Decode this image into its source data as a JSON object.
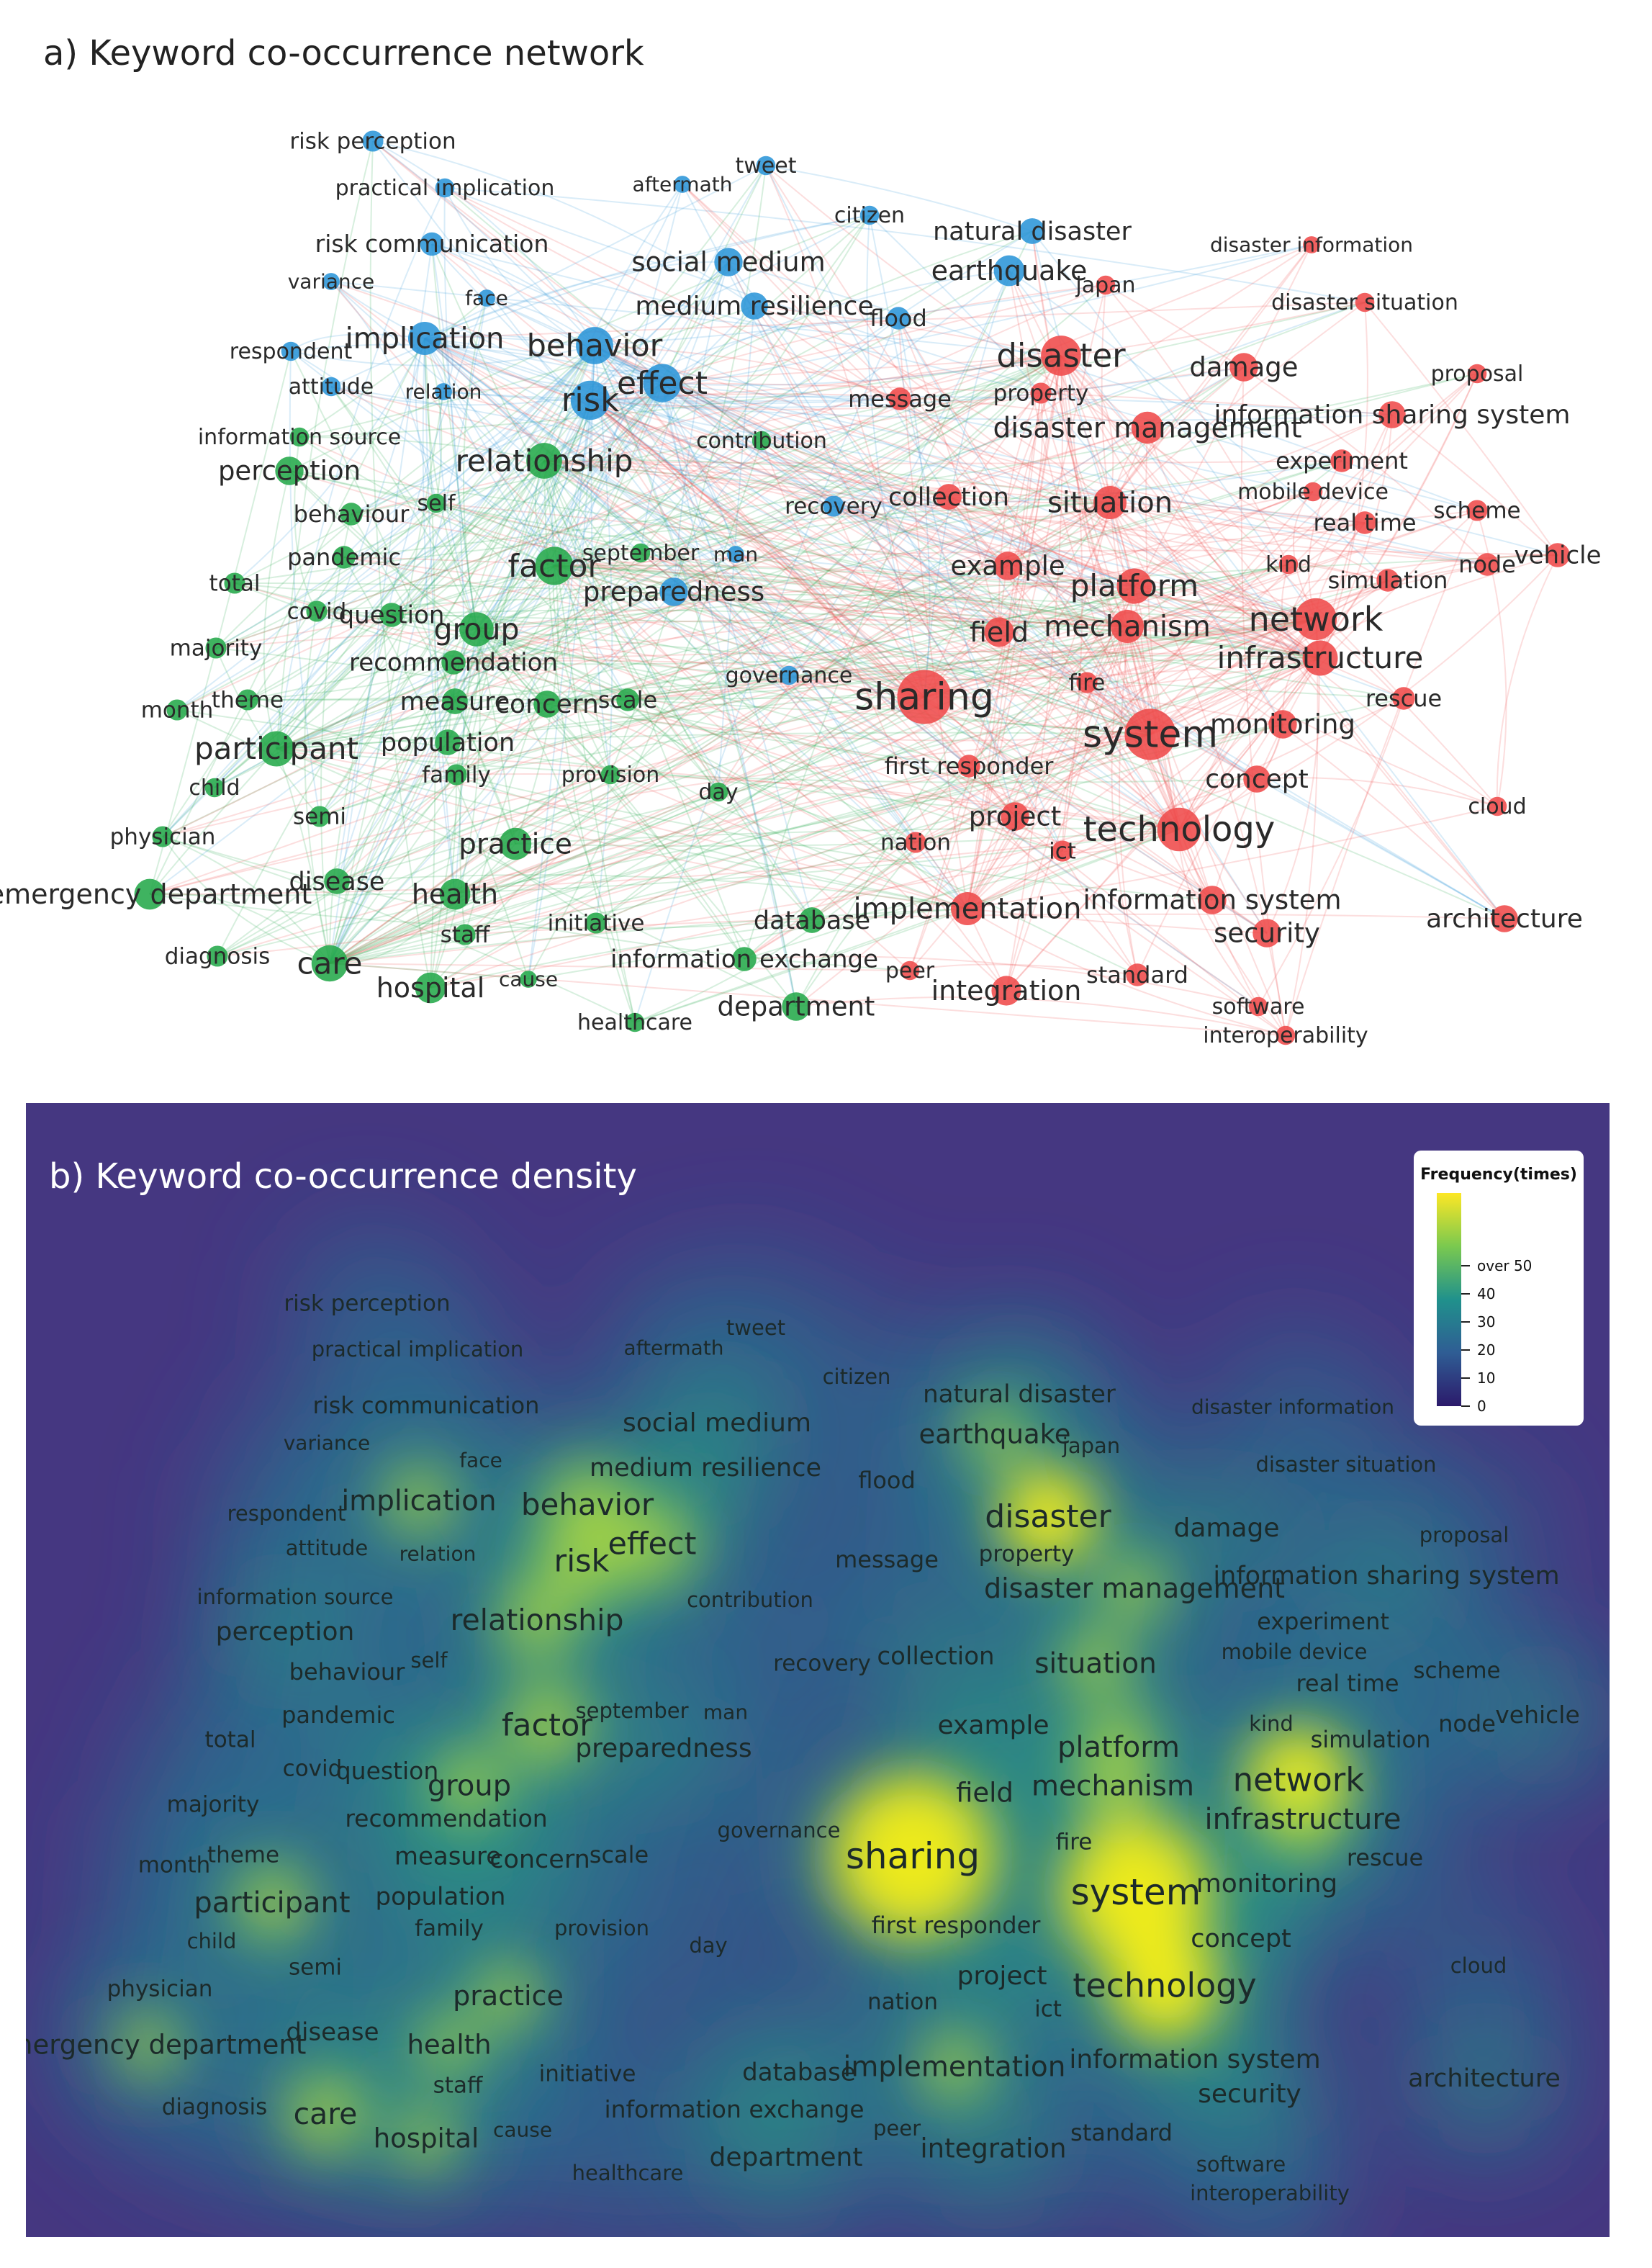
{
  "panel_a": {
    "title": "a) Keyword co-occurrence network"
  },
  "panel_b": {
    "title": "b) Keyword co-occurrence density",
    "legend_title": "Frequency(times)",
    "legend_ticks": [
      "0",
      "10",
      "20",
      "30",
      "40",
      "over 50"
    ]
  },
  "colors": {
    "cluster_red": "#ef4a4a",
    "cluster_blue": "#2b95d8",
    "cluster_green": "#24a84a",
    "density_low": "#44357f",
    "density_high": "#f7ef17"
  },
  "keywords": [
    {
      "label": "risk perception",
      "cluster": "blue",
      "weight": 12
    },
    {
      "label": "practical implication",
      "cluster": "blue",
      "weight": 10
    },
    {
      "label": "aftermath",
      "cluster": "blue",
      "weight": 8
    },
    {
      "label": "tweet",
      "cluster": "blue",
      "weight": 10
    },
    {
      "label": "citizen",
      "cluster": "blue",
      "weight": 10
    },
    {
      "label": "natural disaster",
      "cluster": "blue",
      "weight": 18
    },
    {
      "label": "risk communication",
      "cluster": "blue",
      "weight": 15
    },
    {
      "label": "variance",
      "cluster": "blue",
      "weight": 8
    },
    {
      "label": "social medium",
      "cluster": "blue",
      "weight": 22
    },
    {
      "label": "earthquake",
      "cluster": "blue",
      "weight": 26
    },
    {
      "label": "face",
      "cluster": "blue",
      "weight": 8
    },
    {
      "label": "medium resilience",
      "cluster": "blue",
      "weight": 20
    },
    {
      "label": "flood",
      "cluster": "blue",
      "weight": 14
    },
    {
      "label": "respondent",
      "cluster": "blue",
      "weight": 10
    },
    {
      "label": "implication",
      "cluster": "blue",
      "weight": 30
    },
    {
      "label": "behavior",
      "cluster": "blue",
      "weight": 38
    },
    {
      "label": "attitude",
      "cluster": "blue",
      "weight": 10
    },
    {
      "label": "relation",
      "cluster": "blue",
      "weight": 8
    },
    {
      "label": "risk",
      "cluster": "blue",
      "weight": 42
    },
    {
      "label": "effect",
      "cluster": "blue",
      "weight": 40
    },
    {
      "label": "recovery",
      "cluster": "blue",
      "weight": 12
    },
    {
      "label": "governance",
      "cluster": "blue",
      "weight": 10
    },
    {
      "label": "preparedness",
      "cluster": "blue",
      "weight": 22
    },
    {
      "label": "man",
      "cluster": "blue",
      "weight": 8
    },
    {
      "label": "information source",
      "cluster": "green",
      "weight": 10
    },
    {
      "label": "perception",
      "cluster": "green",
      "weight": 22
    },
    {
      "label": "relationship",
      "cluster": "green",
      "weight": 35
    },
    {
      "label": "contribution",
      "cluster": "green",
      "weight": 10
    },
    {
      "label": "behaviour",
      "cluster": "green",
      "weight": 14
    },
    {
      "label": "self",
      "cluster": "green",
      "weight": 10
    },
    {
      "label": "pandemic",
      "cluster": "green",
      "weight": 14
    },
    {
      "label": "september",
      "cluster": "green",
      "weight": 10
    },
    {
      "label": "factor",
      "cluster": "green",
      "weight": 40
    },
    {
      "label": "total",
      "cluster": "green",
      "weight": 12
    },
    {
      "label": "covid",
      "cluster": "green",
      "weight": 12
    },
    {
      "label": "question",
      "cluster": "green",
      "weight": 16
    },
    {
      "label": "group",
      "cluster": "green",
      "weight": 32
    },
    {
      "label": "majority",
      "cluster": "green",
      "weight": 12
    },
    {
      "label": "recommendation",
      "cluster": "green",
      "weight": 16
    },
    {
      "label": "month",
      "cluster": "green",
      "weight": 12
    },
    {
      "label": "theme",
      "cluster": "green",
      "weight": 12
    },
    {
      "label": "measure",
      "cluster": "green",
      "weight": 18
    },
    {
      "label": "concern",
      "cluster": "green",
      "weight": 20
    },
    {
      "label": "scale",
      "cluster": "green",
      "weight": 14
    },
    {
      "label": "participant",
      "cluster": "green",
      "weight": 34
    },
    {
      "label": "population",
      "cluster": "green",
      "weight": 18
    },
    {
      "label": "family",
      "cluster": "green",
      "weight": 12
    },
    {
      "label": "provision",
      "cluster": "green",
      "weight": 10
    },
    {
      "label": "day",
      "cluster": "green",
      "weight": 10
    },
    {
      "label": "child",
      "cluster": "green",
      "weight": 10
    },
    {
      "label": "semi",
      "cluster": "green",
      "weight": 12
    },
    {
      "label": "physician",
      "cluster": "green",
      "weight": 12
    },
    {
      "label": "practice",
      "cluster": "green",
      "weight": 28
    },
    {
      "label": "disease",
      "cluster": "green",
      "weight": 18
    },
    {
      "label": "emergency department",
      "cluster": "green",
      "weight": 26
    },
    {
      "label": "health",
      "cluster": "green",
      "weight": 26
    },
    {
      "label": "initiative",
      "cluster": "green",
      "weight": 12
    },
    {
      "label": "database",
      "cluster": "green",
      "weight": 18
    },
    {
      "label": "staff",
      "cluster": "green",
      "weight": 12
    },
    {
      "label": "diagnosis",
      "cluster": "green",
      "weight": 12
    },
    {
      "label": "care",
      "cluster": "green",
      "weight": 36
    },
    {
      "label": "information exchange",
      "cluster": "green",
      "weight": 16
    },
    {
      "label": "cause",
      "cluster": "green",
      "weight": 8
    },
    {
      "label": "hospital",
      "cluster": "green",
      "weight": 26
    },
    {
      "label": "department",
      "cluster": "green",
      "weight": 22
    },
    {
      "label": "healthcare",
      "cluster": "green",
      "weight": 10
    },
    {
      "label": "disaster information",
      "cluster": "red",
      "weight": 8
    },
    {
      "label": "japan",
      "cluster": "red",
      "weight": 10
    },
    {
      "label": "disaster situation",
      "cluster": "red",
      "weight": 10
    },
    {
      "label": "disaster",
      "cluster": "red",
      "weight": 44
    },
    {
      "label": "damage",
      "cluster": "red",
      "weight": 22
    },
    {
      "label": "proposal",
      "cluster": "red",
      "weight": 10
    },
    {
      "label": "message",
      "cluster": "red",
      "weight": 14
    },
    {
      "label": "property",
      "cluster": "red",
      "weight": 12
    },
    {
      "label": "information sharing system",
      "cluster": "red",
      "weight": 20
    },
    {
      "label": "disaster management",
      "cluster": "red",
      "weight": 28
    },
    {
      "label": "experiment",
      "cluster": "red",
      "weight": 14
    },
    {
      "label": "mobile device",
      "cluster": "red",
      "weight": 10
    },
    {
      "label": "collection",
      "cluster": "red",
      "weight": 18
    },
    {
      "label": "situation",
      "cluster": "red",
      "weight": 30
    },
    {
      "label": "scheme",
      "cluster": "red",
      "weight": 12
    },
    {
      "label": "real time",
      "cluster": "red",
      "weight": 14
    },
    {
      "label": "vehicle",
      "cluster": "red",
      "weight": 16
    },
    {
      "label": "kind",
      "cluster": "red",
      "weight": 10
    },
    {
      "label": "node",
      "cluster": "red",
      "weight": 14
    },
    {
      "label": "simulation",
      "cluster": "red",
      "weight": 14
    },
    {
      "label": "example",
      "cluster": "red",
      "weight": 22
    },
    {
      "label": "platform",
      "cluster": "red",
      "weight": 34
    },
    {
      "label": "network",
      "cluster": "red",
      "weight": 48
    },
    {
      "label": "field",
      "cluster": "red",
      "weight": 24
    },
    {
      "label": "mechanism",
      "cluster": "red",
      "weight": 30
    },
    {
      "label": "infrastructure",
      "cluster": "red",
      "weight": 34
    },
    {
      "label": "fire",
      "cluster": "red",
      "weight": 12
    },
    {
      "label": "rescue",
      "cluster": "red",
      "weight": 14
    },
    {
      "label": "sharing",
      "cluster": "red",
      "weight": 80
    },
    {
      "label": "system",
      "cluster": "red",
      "weight": 72
    },
    {
      "label": "monitoring",
      "cluster": "red",
      "weight": 22
    },
    {
      "label": "first responder",
      "cluster": "red",
      "weight": 14
    },
    {
      "label": "concept",
      "cluster": "red",
      "weight": 20
    },
    {
      "label": "project",
      "cluster": "red",
      "weight": 22
    },
    {
      "label": "technology",
      "cluster": "red",
      "weight": 52
    },
    {
      "label": "cloud",
      "cluster": "red",
      "weight": 10
    },
    {
      "label": "nation",
      "cluster": "red",
      "weight": 12
    },
    {
      "label": "ict",
      "cluster": "red",
      "weight": 12
    },
    {
      "label": "implementation",
      "cluster": "red",
      "weight": 30
    },
    {
      "label": "information system",
      "cluster": "red",
      "weight": 22
    },
    {
      "label": "security",
      "cluster": "red",
      "weight": 22
    },
    {
      "label": "architecture",
      "cluster": "red",
      "weight": 20
    },
    {
      "label": "peer",
      "cluster": "red",
      "weight": 10
    },
    {
      "label": "integration",
      "cluster": "red",
      "weight": 24
    },
    {
      "label": "standard",
      "cluster": "red",
      "weight": 14
    },
    {
      "label": "software",
      "cluster": "red",
      "weight": 10
    },
    {
      "label": "interoperability",
      "cluster": "red",
      "weight": 10
    }
  ]
}
